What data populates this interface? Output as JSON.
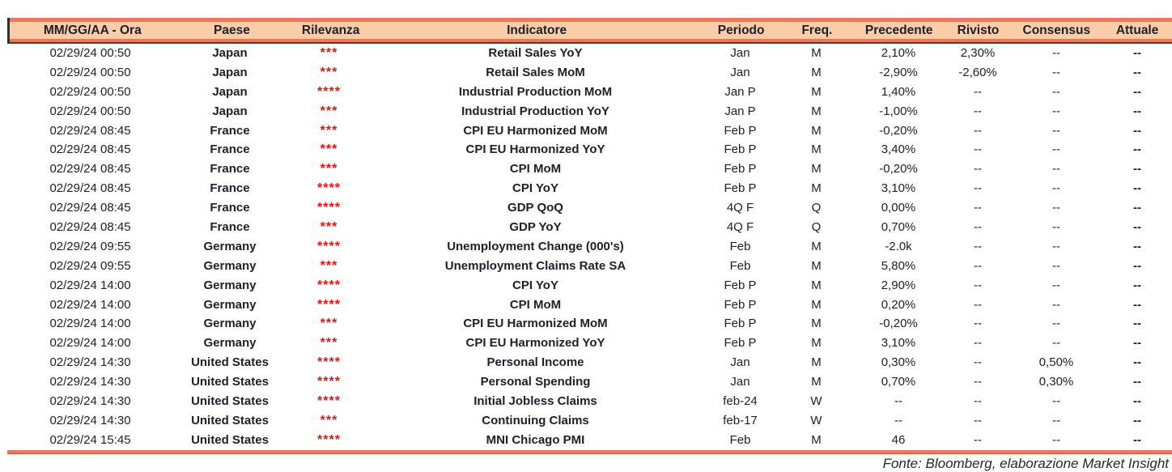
{
  "colors": {
    "accent_coral": "#E8795C",
    "header_fill_peach": "#F8CDA8",
    "header_underline_dark": "#7A2C1C",
    "relevance_red": "#F01010",
    "text_ink": "#20202A"
  },
  "table": {
    "columns": [
      {
        "key": "datetime",
        "label": "MM/GG/AA - Ora"
      },
      {
        "key": "country",
        "label": "Paese"
      },
      {
        "key": "relevance",
        "label": "Rilevanza"
      },
      {
        "key": "indicator",
        "label": "Indicatore"
      },
      {
        "key": "period",
        "label": "Periodo"
      },
      {
        "key": "freq",
        "label": "Freq."
      },
      {
        "key": "previous",
        "label": "Precedente"
      },
      {
        "key": "revised",
        "label": "Rivisto"
      },
      {
        "key": "consensus",
        "label": "Consensus"
      },
      {
        "key": "actual",
        "label": "Attuale"
      }
    ],
    "rows": [
      {
        "datetime": "02/29/24 00:50",
        "country": "Japan",
        "relevance": "***",
        "indicator": "Retail Sales YoY",
        "period": "Jan",
        "freq": "M",
        "previous": "2,10%",
        "revised": "2,30%",
        "consensus": "--",
        "actual": "--"
      },
      {
        "datetime": "02/29/24 00:50",
        "country": "Japan",
        "relevance": "***",
        "indicator": "Retail Sales MoM",
        "period": "Jan",
        "freq": "M",
        "previous": "-2,90%",
        "revised": "-2,60%",
        "consensus": "--",
        "actual": "--"
      },
      {
        "datetime": "02/29/24 00:50",
        "country": "Japan",
        "relevance": "****",
        "indicator": "Industrial Production MoM",
        "period": "Jan P",
        "freq": "M",
        "previous": "1,40%",
        "revised": "--",
        "consensus": "--",
        "actual": "--"
      },
      {
        "datetime": "02/29/24 00:50",
        "country": "Japan",
        "relevance": "***",
        "indicator": "Industrial Production YoY",
        "period": "Jan P",
        "freq": "M",
        "previous": "-1,00%",
        "revised": "--",
        "consensus": "--",
        "actual": "--"
      },
      {
        "datetime": "02/29/24 08:45",
        "country": "France",
        "relevance": "***",
        "indicator": "CPI EU Harmonized MoM",
        "period": "Feb P",
        "freq": "M",
        "previous": "-0,20%",
        "revised": "--",
        "consensus": "--",
        "actual": "--"
      },
      {
        "datetime": "02/29/24 08:45",
        "country": "France",
        "relevance": "***",
        "indicator": "CPI EU Harmonized YoY",
        "period": "Feb P",
        "freq": "M",
        "previous": "3,40%",
        "revised": "--",
        "consensus": "--",
        "actual": "--"
      },
      {
        "datetime": "02/29/24 08:45",
        "country": "France",
        "relevance": "***",
        "indicator": "CPI MoM",
        "period": "Feb P",
        "freq": "M",
        "previous": "-0,20%",
        "revised": "--",
        "consensus": "--",
        "actual": "--"
      },
      {
        "datetime": "02/29/24 08:45",
        "country": "France",
        "relevance": "****",
        "indicator": "CPI YoY",
        "period": "Feb P",
        "freq": "M",
        "previous": "3,10%",
        "revised": "--",
        "consensus": "--",
        "actual": "--"
      },
      {
        "datetime": "02/29/24 08:45",
        "country": "France",
        "relevance": "****",
        "indicator": "GDP QoQ",
        "period": "4Q F",
        "freq": "Q",
        "previous": "0,00%",
        "revised": "--",
        "consensus": "--",
        "actual": "--"
      },
      {
        "datetime": "02/29/24 08:45",
        "country": "France",
        "relevance": "***",
        "indicator": "GDP YoY",
        "period": "4Q F",
        "freq": "Q",
        "previous": "0,70%",
        "revised": "--",
        "consensus": "--",
        "actual": "--"
      },
      {
        "datetime": "02/29/24 09:55",
        "country": "Germany",
        "relevance": "****",
        "indicator": "Unemployment Change (000's)",
        "period": "Feb",
        "freq": "M",
        "previous": "-2.0k",
        "revised": "--",
        "consensus": "--",
        "actual": "--"
      },
      {
        "datetime": "02/29/24 09:55",
        "country": "Germany",
        "relevance": "***",
        "indicator": "Unemployment Claims Rate SA",
        "period": "Feb",
        "freq": "M",
        "previous": "5,80%",
        "revised": "--",
        "consensus": "--",
        "actual": "--"
      },
      {
        "datetime": "02/29/24 14:00",
        "country": "Germany",
        "relevance": "****",
        "indicator": "CPI YoY",
        "period": "Feb P",
        "freq": "M",
        "previous": "2,90%",
        "revised": "--",
        "consensus": "--",
        "actual": "--"
      },
      {
        "datetime": "02/29/24 14:00",
        "country": "Germany",
        "relevance": "****",
        "indicator": "CPI MoM",
        "period": "Feb P",
        "freq": "M",
        "previous": "0,20%",
        "revised": "--",
        "consensus": "--",
        "actual": "--"
      },
      {
        "datetime": "02/29/24 14:00",
        "country": "Germany",
        "relevance": "***",
        "indicator": "CPI EU Harmonized MoM",
        "period": "Feb P",
        "freq": "M",
        "previous": "-0,20%",
        "revised": "--",
        "consensus": "--",
        "actual": "--"
      },
      {
        "datetime": "02/29/24 14:00",
        "country": "Germany",
        "relevance": "***",
        "indicator": "CPI EU Harmonized YoY",
        "period": "Feb P",
        "freq": "M",
        "previous": "3,10%",
        "revised": "--",
        "consensus": "--",
        "actual": "--"
      },
      {
        "datetime": "02/29/24 14:30",
        "country": "United States",
        "relevance": "****",
        "indicator": "Personal Income",
        "period": "Jan",
        "freq": "M",
        "previous": "0,30%",
        "revised": "--",
        "consensus": "0,50%",
        "actual": "--"
      },
      {
        "datetime": "02/29/24 14:30",
        "country": "United States",
        "relevance": "****",
        "indicator": "Personal Spending",
        "period": "Jan",
        "freq": "M",
        "previous": "0,70%",
        "revised": "--",
        "consensus": "0,30%",
        "actual": "--"
      },
      {
        "datetime": "02/29/24 14:30",
        "country": "United States",
        "relevance": "****",
        "indicator": "Initial Jobless Claims",
        "period": "feb-24",
        "freq": "W",
        "previous": "--",
        "revised": "--",
        "consensus": "--",
        "actual": "--"
      },
      {
        "datetime": "02/29/24 14:30",
        "country": "United States",
        "relevance": "***",
        "indicator": "Continuing Claims",
        "period": "feb-17",
        "freq": "W",
        "previous": "--",
        "revised": "--",
        "consensus": "--",
        "actual": "--"
      },
      {
        "datetime": "02/29/24 15:45",
        "country": "United States",
        "relevance": "****",
        "indicator": "MNI Chicago PMI",
        "period": "Feb",
        "freq": "M",
        "previous": "46",
        "revised": "--",
        "consensus": "--",
        "actual": "--"
      }
    ]
  },
  "footer": {
    "source_note": "Fonte: Bloomberg, elaborazione Market Insight"
  }
}
